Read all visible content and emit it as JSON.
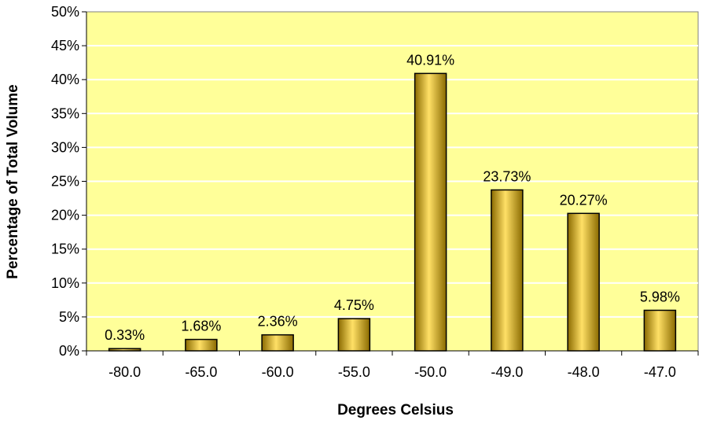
{
  "chart_data": {
    "type": "bar",
    "title": "",
    "xlabel": "Degrees Celsius",
    "ylabel": "Percentage of Total Volume",
    "categories": [
      "-80.0",
      "-65.0",
      "-60.0",
      "-55.0",
      "-50.0",
      "-49.0",
      "-48.0",
      "-47.0"
    ],
    "values": [
      0.33,
      1.68,
      2.36,
      4.75,
      40.91,
      23.73,
      20.27,
      5.98
    ],
    "data_labels": [
      "0.33%",
      "1.68%",
      "2.36%",
      "4.75%",
      "40.91%",
      "23.73%",
      "20.27%",
      "5.98%"
    ],
    "ylim": [
      0,
      50
    ],
    "yticks": [
      0,
      5,
      10,
      15,
      20,
      25,
      30,
      35,
      40,
      45,
      50
    ],
    "ytick_labels": [
      "0%",
      "5%",
      "10%",
      "15%",
      "20%",
      "25%",
      "30%",
      "35%",
      "40%",
      "45%",
      "50%"
    ],
    "grid": true,
    "legend": "none",
    "colors": {
      "plot_background": "#FFFF99",
      "bar_light": "#FFE066",
      "bar_mid": "#E0B000",
      "bar_dark": "#8A6A00",
      "gridline": "#FFFFFF"
    }
  }
}
